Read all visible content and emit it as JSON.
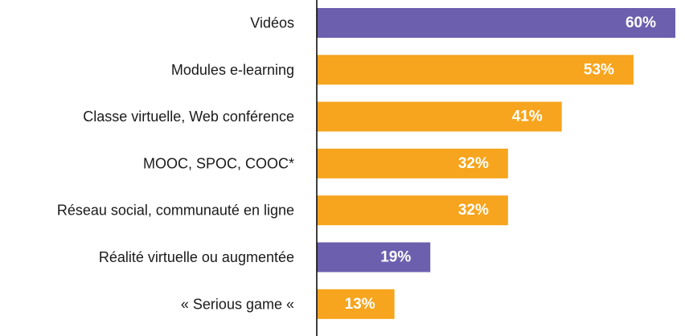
{
  "chart_data": {
    "type": "bar",
    "orientation": "horizontal",
    "categories": [
      "Vidéos",
      "Modules e-learning",
      "Classe virtuelle, Web conférence",
      "MOOC, SPOC, COOC*",
      "Réseau social, communauté en ligne",
      "Réalité virtuelle ou augmentée",
      "« Serious game «"
    ],
    "values": [
      60,
      53,
      41,
      32,
      32,
      19,
      13
    ],
    "value_labels": [
      "60%",
      "53%",
      "41%",
      "32%",
      "32%",
      "19%",
      "13%"
    ],
    "bar_colors": [
      "#6b5fae",
      "#f7a51e",
      "#f7a51e",
      "#f7a51e",
      "#f7a51e",
      "#6b5fae",
      "#f7a51e"
    ],
    "xlim": [
      0,
      60
    ],
    "grid": false,
    "legend": "none"
  },
  "colors": {
    "highlight": "#6b5fae",
    "default": "#f7a51e",
    "axis": "#000000",
    "label_text": "#1a1a1a",
    "value_text": "#ffffff"
  }
}
